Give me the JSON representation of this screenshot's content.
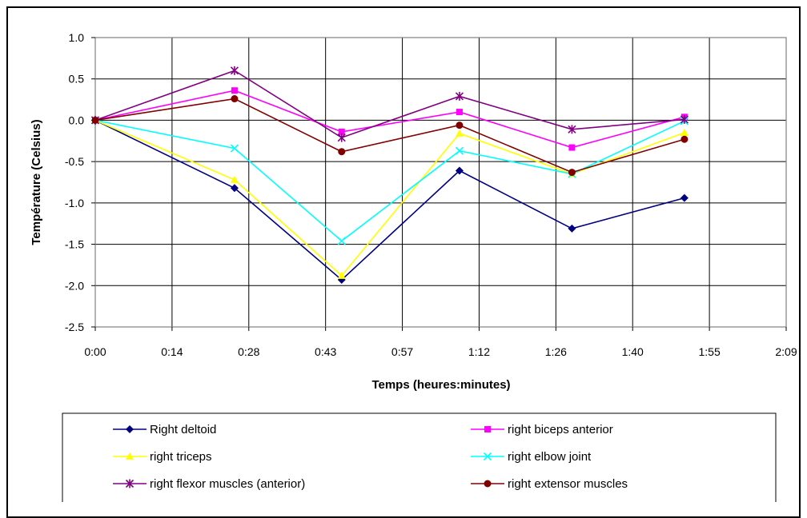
{
  "chart_data": {
    "type": "line",
    "xlabel": "Temps (heures:minutes)",
    "ylabel": "Température (Celsius)",
    "x_tick_labels": [
      "0:00",
      "0:14",
      "0:28",
      "0:43",
      "0:57",
      "1:12",
      "1:26",
      "1:40",
      "1:55",
      "2:09"
    ],
    "y_tick_labels": [
      "-2.5",
      "-2.0",
      "-1.5",
      "-1.0",
      "-0.5",
      "0.0",
      "0.5",
      "1.0"
    ],
    "xlim": [
      "0:00",
      "2:09"
    ],
    "ylim": [
      -2.5,
      1.0
    ],
    "grid": true,
    "legend_position": "bottom",
    "x": [
      "0:00",
      "0:26",
      "0:46",
      "1:08",
      "1:29",
      "1:50"
    ],
    "series": [
      {
        "name": "Right deltoid",
        "color": "#000080",
        "marker": "diamond",
        "values": [
          0.0,
          -0.82,
          -1.93,
          -0.61,
          -1.31,
          -0.94
        ]
      },
      {
        "name": "right biceps anterior",
        "color": "#ff00ff",
        "marker": "square",
        "values": [
          0.0,
          0.36,
          -0.14,
          0.1,
          -0.33,
          0.04
        ]
      },
      {
        "name": "right triceps",
        "color": "#ffff00",
        "marker": "triangle",
        "values": [
          0.0,
          -0.72,
          -1.88,
          -0.16,
          -0.65,
          -0.15
        ]
      },
      {
        "name": "right elbow joint",
        "color": "#00ffff",
        "marker": "x",
        "values": [
          0.0,
          -0.34,
          -1.46,
          -0.37,
          -0.65,
          -0.01
        ]
      },
      {
        "name": "right flexor muscles (anterior)",
        "color": "#800080",
        "marker": "star",
        "values": [
          0.0,
          0.6,
          -0.21,
          0.29,
          -0.11,
          0.01
        ]
      },
      {
        "name": "right extensor muscles",
        "color": "#800000",
        "marker": "circle",
        "values": [
          0.0,
          0.26,
          -0.38,
          -0.06,
          -0.63,
          -0.23
        ]
      }
    ]
  }
}
